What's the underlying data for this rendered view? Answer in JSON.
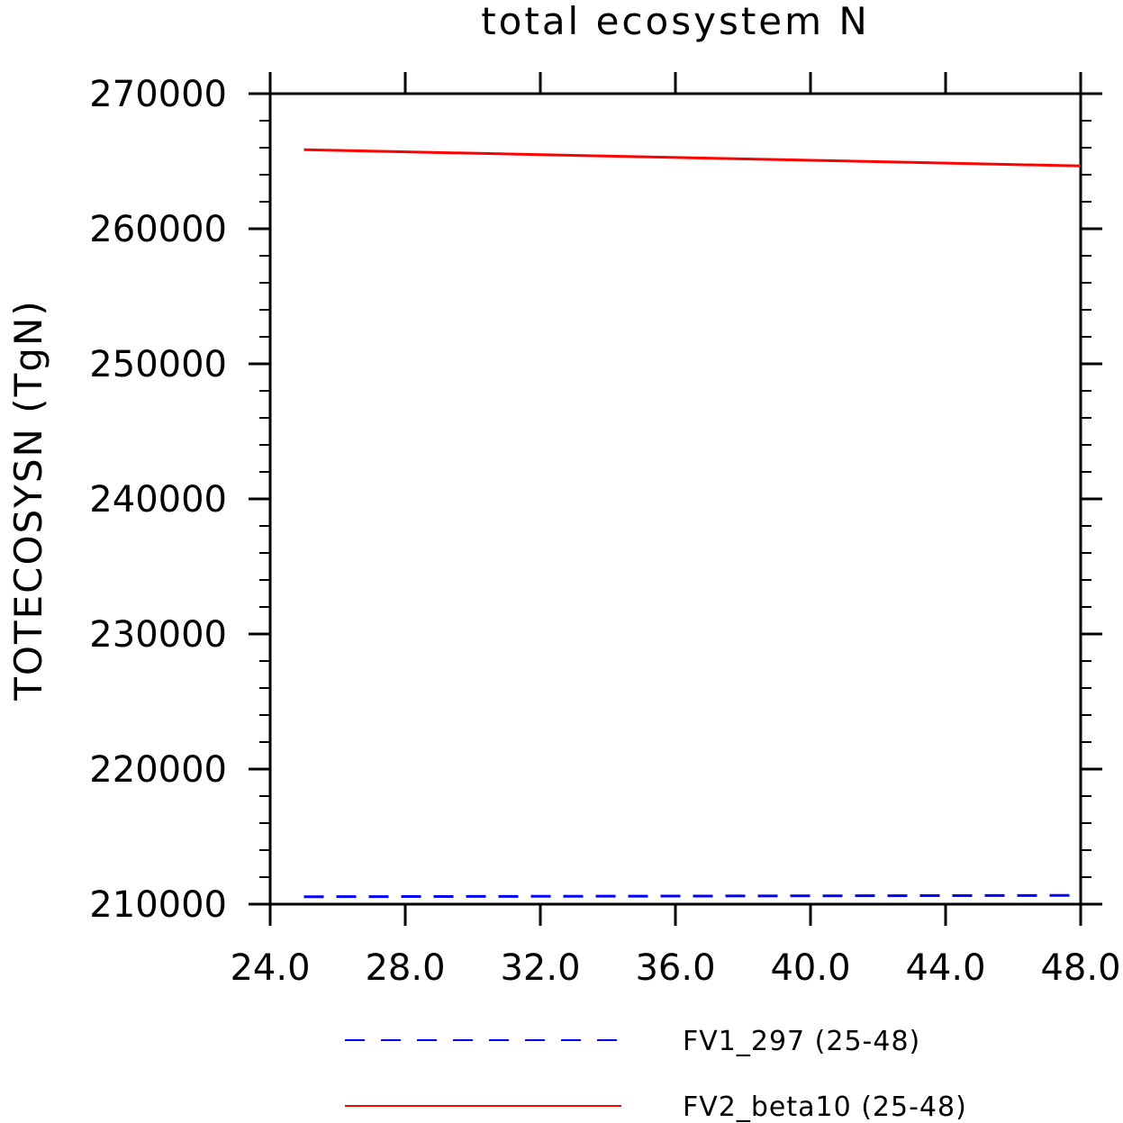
{
  "chart_data": {
    "type": "line",
    "title": "total ecosystem N",
    "xlabel": "",
    "ylabel": "TOTECOSYSN  (TgN)",
    "xlim": [
      24,
      48
    ],
    "ylim": [
      210000,
      270000
    ],
    "x_ticks": [
      "24.0",
      "28.0",
      "32.0",
      "36.0",
      "40.0",
      "44.0",
      "48.0"
    ],
    "y_ticks": [
      "210000",
      "220000",
      "230000",
      "240000",
      "250000",
      "260000",
      "270000"
    ],
    "grid": false,
    "legend_position": "bottom",
    "series": [
      {
        "name": "FV1_297 (25-48)",
        "color": "#0000ff",
        "dash": "dashed",
        "x": [
          25,
          48
        ],
        "y": [
          210550,
          210650
        ]
      },
      {
        "name": "FV2_beta10 (25-48)",
        "color": "#ff0000",
        "dash": "solid",
        "x": [
          25,
          48
        ],
        "y": [
          265850,
          264650
        ]
      }
    ]
  }
}
